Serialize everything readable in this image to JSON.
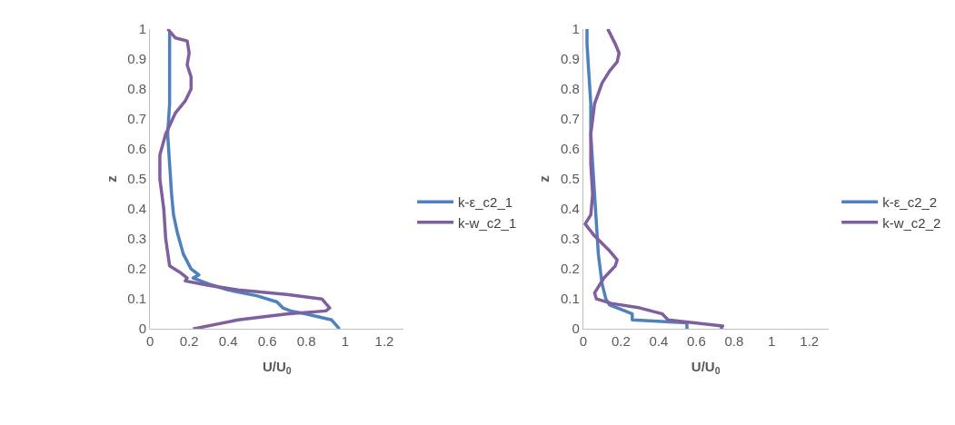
{
  "chart_data": [
    {
      "type": "line",
      "xlabel": "U/U$_{0}$",
      "ylabel": "z",
      "xlim": [
        0,
        1.3
      ],
      "ylim": [
        0,
        1
      ],
      "xticks": [
        0,
        0.2,
        0.4,
        0.6,
        0.8,
        1,
        1.2
      ],
      "yticks": [
        0,
        0.1,
        0.2,
        0.3,
        0.4,
        0.5,
        0.6,
        0.7,
        0.8,
        0.9,
        1
      ],
      "legend": "right",
      "series": [
        {
          "name": "k-ε_c2_1",
          "color": "#4f81bd",
          "x": [
            0.97,
            0.93,
            0.8,
            0.72,
            0.68,
            0.65,
            0.55,
            0.4,
            0.3,
            0.22,
            0.25,
            0.21,
            0.17,
            0.14,
            0.12,
            0.11,
            0.1,
            0.09,
            0.1,
            0.1,
            0.1,
            0.1
          ],
          "values": [
            0,
            0.03,
            0.05,
            0.06,
            0.07,
            0.09,
            0.11,
            0.13,
            0.15,
            0.17,
            0.18,
            0.2,
            0.25,
            0.32,
            0.38,
            0.45,
            0.55,
            0.65,
            0.75,
            0.85,
            0.95,
            0.99
          ]
        },
        {
          "name": "k-w_c2_1",
          "color": "#7f5f9f",
          "x": [
            0.22,
            0.45,
            0.7,
            0.9,
            0.92,
            0.88,
            0.7,
            0.45,
            0.3,
            0.18,
            0.19,
            0.15,
            0.1,
            0.08,
            0.07,
            0.05,
            0.05,
            0.08,
            0.13,
            0.18,
            0.21,
            0.21,
            0.19,
            0.2,
            0.19,
            0.13,
            0.09
          ],
          "values": [
            0,
            0.03,
            0.05,
            0.06,
            0.07,
            0.1,
            0.115,
            0.13,
            0.145,
            0.16,
            0.17,
            0.19,
            0.21,
            0.3,
            0.4,
            0.5,
            0.58,
            0.65,
            0.72,
            0.76,
            0.8,
            0.84,
            0.88,
            0.92,
            0.96,
            0.97,
            1
          ]
        }
      ]
    },
    {
      "type": "line",
      "xlabel": "U/U$_{0}$",
      "ylabel": "z",
      "xlim": [
        0,
        1.3
      ],
      "ylim": [
        0,
        1
      ],
      "xticks": [
        0,
        0.2,
        0.4,
        0.6,
        0.8,
        1,
        1.2
      ],
      "yticks": [
        0,
        0.1,
        0.2,
        0.3,
        0.4,
        0.5,
        0.6,
        0.7,
        0.8,
        0.9,
        1
      ],
      "legend": "right",
      "series": [
        {
          "name": "k-ε_c2_2",
          "color": "#4f81bd",
          "x": [
            0.55,
            0.55,
            0.26,
            0.26,
            0.2,
            0.14,
            0.12,
            0.1,
            0.08,
            0.07,
            0.06,
            0.05,
            0.04,
            0.04,
            0.03,
            0.02,
            0.02
          ],
          "values": [
            0,
            0.02,
            0.03,
            0.05,
            0.065,
            0.08,
            0.1,
            0.15,
            0.25,
            0.35,
            0.45,
            0.55,
            0.65,
            0.75,
            0.85,
            0.95,
            1
          ]
        },
        {
          "name": "k-w_c2_2",
          "color": "#7f5f9f",
          "x": [
            0.73,
            0.74,
            0.45,
            0.42,
            0.3,
            0.15,
            0.07,
            0.06,
            0.11,
            0.17,
            0.18,
            0.14,
            0.06,
            0.01,
            0.04,
            0.05,
            0.04,
            0.04,
            0.06,
            0.1,
            0.14,
            0.18,
            0.19,
            0.17,
            0.13
          ],
          "values": [
            0,
            0.01,
            0.03,
            0.05,
            0.07,
            0.085,
            0.1,
            0.12,
            0.17,
            0.21,
            0.23,
            0.26,
            0.31,
            0.35,
            0.38,
            0.45,
            0.55,
            0.65,
            0.75,
            0.82,
            0.86,
            0.89,
            0.92,
            0.95,
            1
          ]
        }
      ]
    }
  ]
}
